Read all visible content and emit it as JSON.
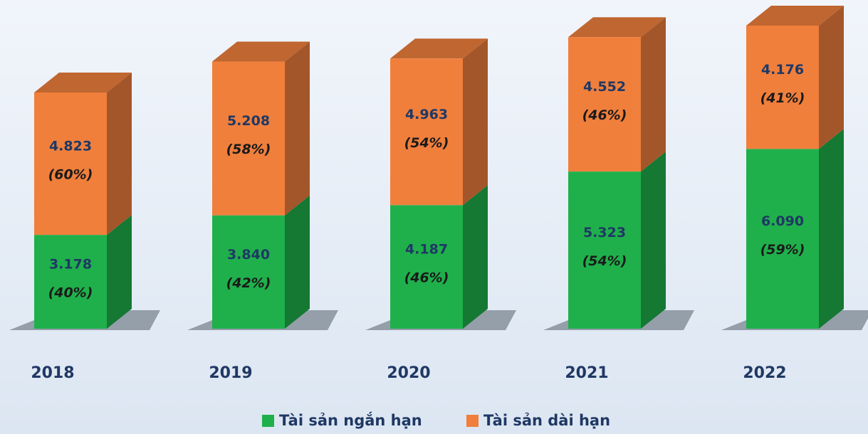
{
  "chart_data": {
    "type": "stacked_bar_3d",
    "categories": [
      "2018",
      "2019",
      "2020",
      "2021",
      "2022"
    ],
    "series": [
      {
        "name": "Tài sản ngắn hạn",
        "color": "#1fb04b",
        "values": [
          3178,
          3840,
          4187,
          5323,
          6090
        ],
        "value_labels": [
          "3.178",
          "3.840",
          "4.187",
          "5.323",
          "6.090"
        ],
        "share_labels": [
          "(40%)",
          "(42%)",
          "(46%)",
          "(54%)",
          "(59%)"
        ]
      },
      {
        "name": "Tài sản dài hạn",
        "color": "#f07f3c",
        "values": [
          4823,
          5208,
          4963,
          4552,
          4176
        ],
        "value_labels": [
          "4.823",
          "5.208",
          "4.963",
          "4.552",
          "4.176"
        ],
        "share_labels": [
          "(60%)",
          "(58%)",
          "(54%)",
          "(46%)",
          "(41%)"
        ]
      }
    ]
  }
}
